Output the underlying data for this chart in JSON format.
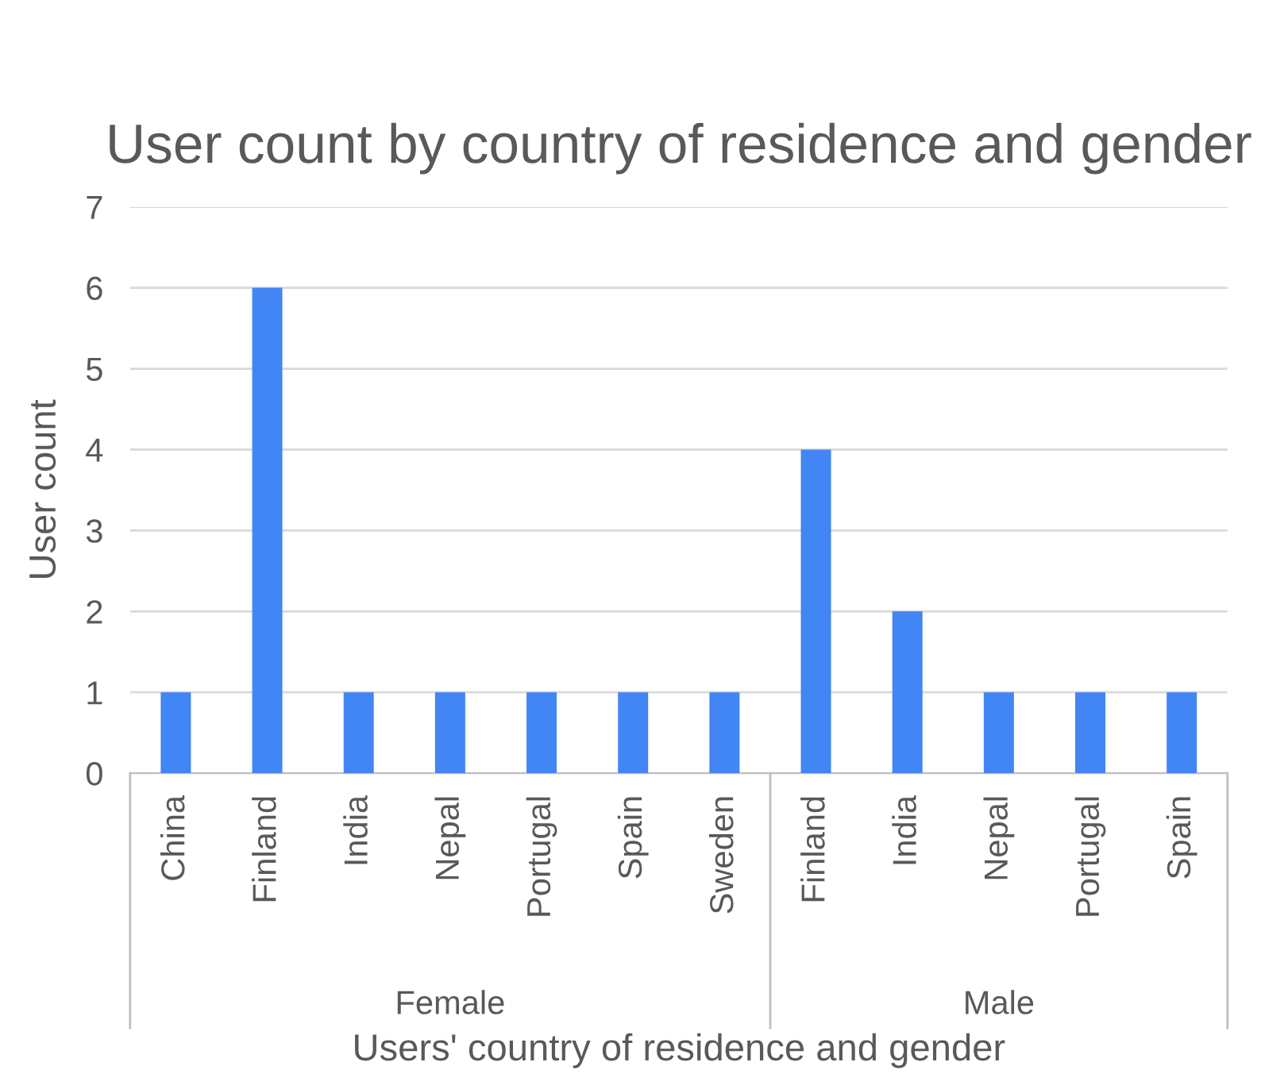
{
  "chart_data": {
    "type": "bar",
    "title": "User count by country of residence and gender",
    "xlabel": "Users' country of residence and gender",
    "ylabel": "User count",
    "categories": [
      "China",
      "Finland",
      "India",
      "Nepal",
      "Portugal",
      "Spain",
      "Sweden",
      "Finland",
      "India",
      "Nepal",
      "Portugal",
      "Spain"
    ],
    "values": [
      1,
      6,
      1,
      1,
      1,
      1,
      1,
      4,
      2,
      1,
      1,
      1
    ],
    "color": "#4285f4",
    "ylim": [
      0,
      7
    ],
    "yticks": [
      0,
      1,
      2,
      3,
      4,
      5,
      6,
      7
    ],
    "grid": "y",
    "annotations": [
      "Female",
      "Male"
    ]
  }
}
